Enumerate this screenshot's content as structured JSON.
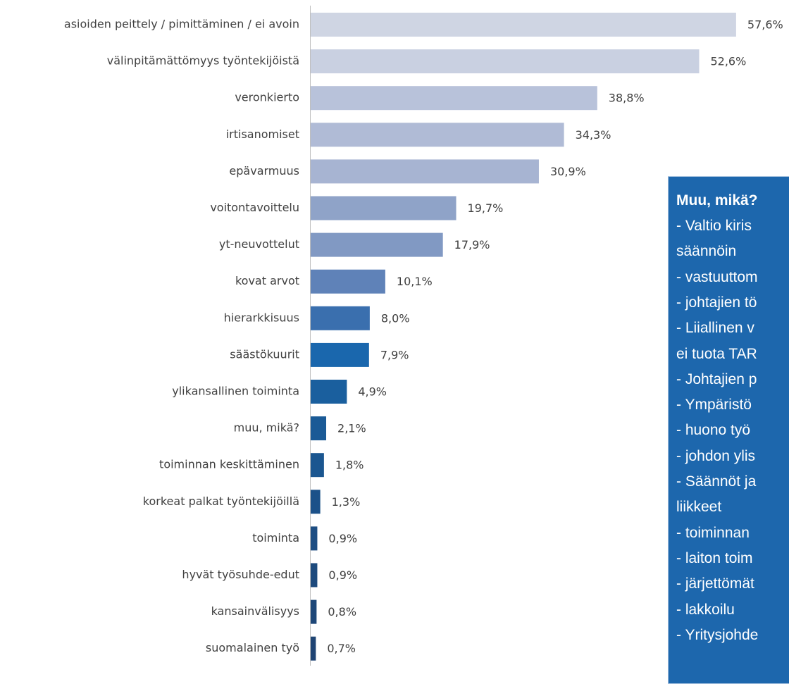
{
  "chart_data": {
    "type": "bar",
    "orientation": "horizontal",
    "categories": [
      "asioiden peittely / pimittäminen / ei avoin",
      "välinpitämättömyys työntekijöistä",
      "veronkierto",
      "irtisanomiset",
      "epävarmuus",
      "voitontavoittelu",
      "yt-neuvottelut",
      "kovat arvot",
      "hierarkkisuus",
      "säästökuurit",
      "ylikansallinen toiminta",
      "muu, mikä?",
      "toiminnan keskittäminen",
      "korkeat palkat työntekijöillä",
      "toiminta",
      "hyvät työsuhde-edut",
      "kansainvälisyys",
      "suomalainen työ"
    ],
    "values": [
      57.6,
      52.6,
      38.8,
      34.3,
      30.9,
      19.7,
      17.9,
      10.1,
      8.0,
      7.9,
      4.9,
      2.1,
      1.8,
      1.3,
      0.9,
      0.9,
      0.8,
      0.7
    ],
    "value_labels": [
      "57,6%",
      "52,6%",
      "38,8%",
      "34,3%",
      "30,9%",
      "19,7%",
      "17,9%",
      "10,1%",
      "8,0%",
      "7,9%",
      "4,9%",
      "2,1%",
      "1,8%",
      "1,3%",
      "0,9%",
      "0,9%",
      "0,8%",
      "0,7%"
    ],
    "colors": [
      "#cfd5e3",
      "#c9d0e1",
      "#b8c2da",
      "#b0bbd6",
      "#a7b4d2",
      "#8fa3c8",
      "#8199c3",
      "#5f82b8",
      "#3a6fae",
      "#1a67ad",
      "#1a5f9e",
      "#1a5a96",
      "#1b5690",
      "#1c5189",
      "#1d4d82",
      "#1d4a7d",
      "#1e4778",
      "#1f4473"
    ],
    "xlim": [
      0,
      64
    ]
  },
  "textbox": {
    "title": "Muu, mikä?",
    "lines": [
      "- Valtio kiris",
      "säännöin",
      "- vastuuttom",
      "- johtajien tö",
      "- Liiallinen v",
      "ei tuota TAR",
      "- Johtajien p",
      "- Ympäristö",
      "- huono työ",
      "- johdon ylis",
      "- Säännöt ja",
      "liikkeet",
      "- toiminnan",
      "- laiton toim",
      "- järjettömät",
      "- lakkoilu",
      "- Yritysjohde"
    ]
  }
}
